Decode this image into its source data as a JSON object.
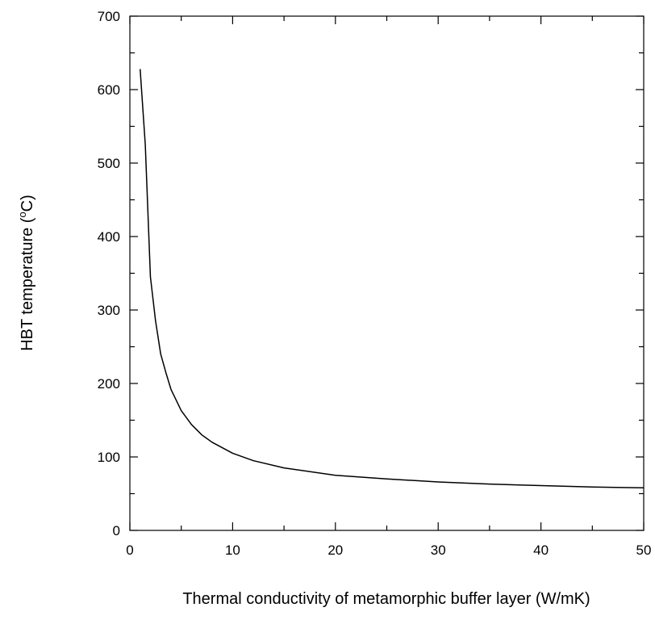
{
  "chart_data": {
    "type": "line",
    "title": "",
    "xlabel": "Thermal conductivity of metamorphic buffer layer (W/mK)",
    "ylabel": {
      "prefix": "HBT temperature (",
      "superscript": "o",
      "suffix": "C)"
    },
    "xlim": [
      0,
      50
    ],
    "ylim": [
      0,
      700
    ],
    "x_ticks": [
      0,
      10,
      20,
      30,
      40,
      50
    ],
    "y_ticks": [
      0,
      100,
      200,
      300,
      400,
      500,
      600,
      700
    ],
    "x_tick_labels": [
      "0",
      "10",
      "20",
      "30",
      "40",
      "50"
    ],
    "y_tick_labels": [
      "0",
      "100",
      "200",
      "300",
      "400",
      "500",
      "600",
      "700"
    ],
    "grid": false,
    "legend": "none",
    "colors": {
      "line": "#000000",
      "axis": "#000000",
      "background": "#ffffff"
    },
    "series": [
      {
        "x": [
          1,
          1.5,
          2,
          2.5,
          3,
          3.5,
          4,
          5,
          6,
          7,
          8,
          10,
          12,
          15,
          20,
          25,
          30,
          35,
          40,
          45,
          50
        ],
        "y": [
          628,
          525,
          345,
          285,
          240,
          215,
          192,
          163,
          144,
          130,
          120,
          105,
          95,
          85,
          75,
          70,
          66,
          63,
          61,
          59,
          58
        ]
      }
    ]
  }
}
